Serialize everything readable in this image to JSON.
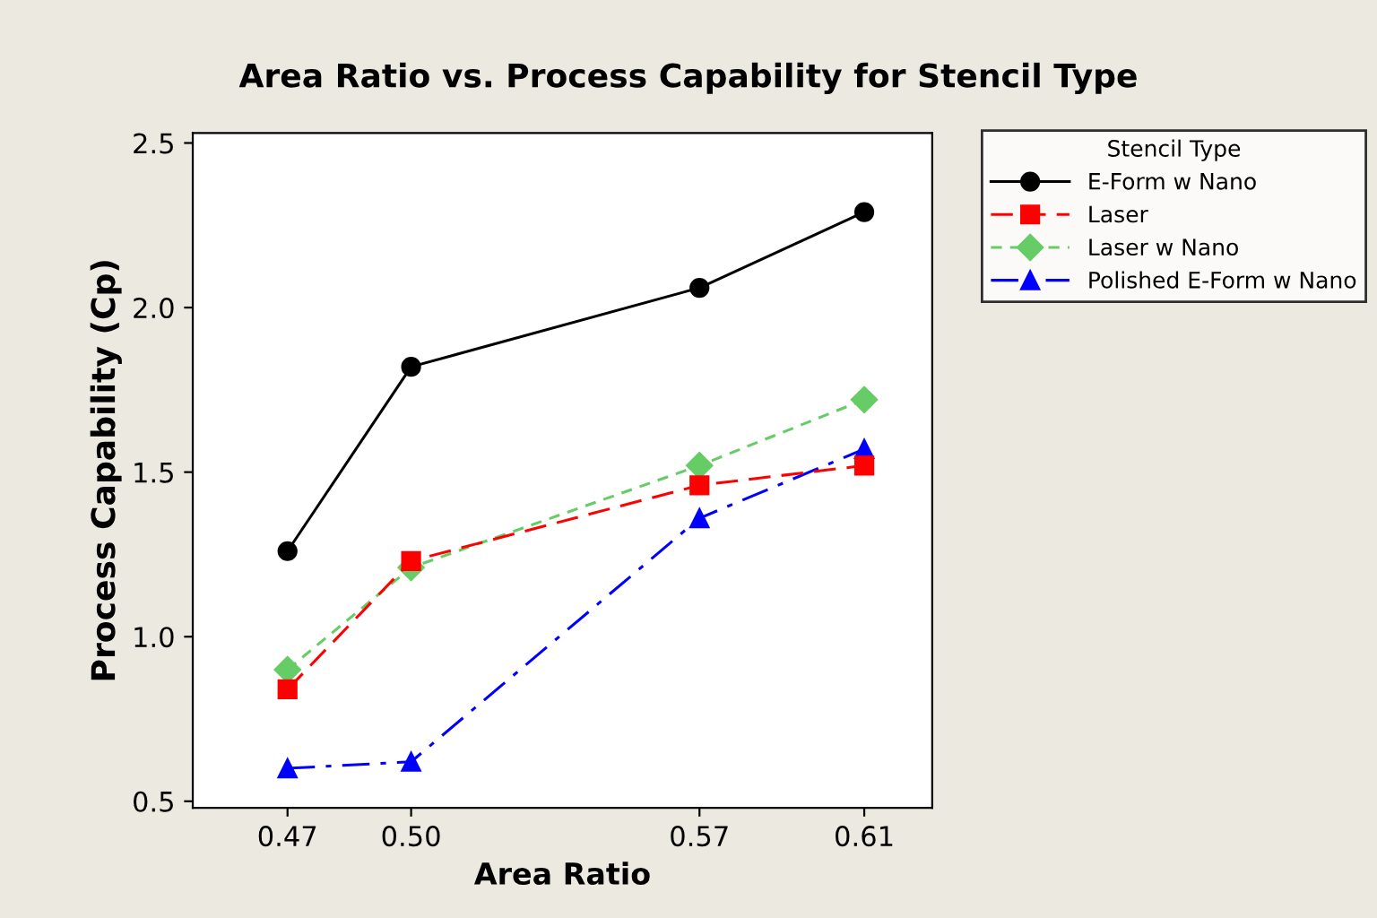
{
  "chart_data": {
    "type": "line",
    "title": "Area Ratio vs. Process Capability for Stencil Type",
    "xlabel": "Area Ratio",
    "ylabel": "Process Capability (Cp)",
    "legend_title": "Stencil Type",
    "x": [
      0.47,
      0.5,
      0.57,
      0.61
    ],
    "xlim": [
      0.447,
      0.6265
    ],
    "xticks": [
      {
        "value": 0.47,
        "label": "0.47"
      },
      {
        "value": 0.5,
        "label": "0.50"
      },
      {
        "value": 0.57,
        "label": "0.57"
      },
      {
        "value": 0.61,
        "label": "0.61"
      }
    ],
    "ylim": [
      0.48,
      2.53
    ],
    "yticks": [
      {
        "value": 0.5,
        "label": "0.5"
      },
      {
        "value": 1,
        "label": "1.0"
      },
      {
        "value": 1.5,
        "label": "1.5"
      },
      {
        "value": 2,
        "label": "2.0"
      },
      {
        "value": 2.5,
        "label": "2.5"
      }
    ],
    "grid": false,
    "legend": "top right",
    "series": [
      {
        "name": "E-Form w Nano",
        "color": "#000000",
        "marker": "circle",
        "line_style": "solid",
        "values": [
          1.26,
          1.82,
          2.06,
          2.29
        ]
      },
      {
        "name": "Laser",
        "color": "#ff0000",
        "marker": "square",
        "line_style": "dashed",
        "values": [
          0.84,
          1.23,
          1.46,
          1.52
        ]
      },
      {
        "name": "Laser w Nano",
        "color": "#66cc66",
        "marker": "diamond",
        "line_style": "dotted",
        "values": [
          0.9,
          1.21,
          1.52,
          1.72
        ]
      },
      {
        "name": "Polished E-Form w Nano",
        "color": "#0000ff",
        "marker": "triangle",
        "line_style": "dashdot",
        "values": [
          0.6,
          0.62,
          1.36,
          1.57
        ]
      }
    ]
  }
}
